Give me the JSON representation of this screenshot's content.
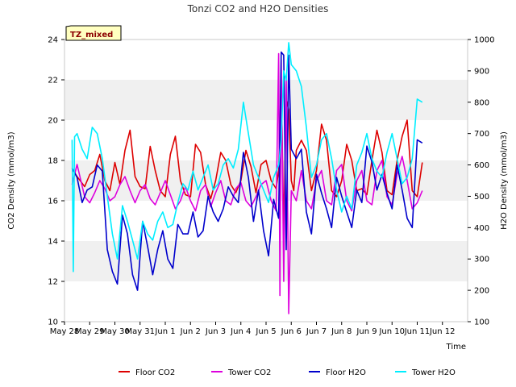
{
  "chart_data": {
    "type": "line",
    "title": "Tonzi CO2 and H2O Densities",
    "badge": "TZ_mixed",
    "xlabel": "Time",
    "ylabel": "CO2 Density (mmol/m3)",
    "y2label": "H2O Density (mmol/m3)",
    "xlim": [
      0,
      16
    ],
    "ylim": [
      10,
      24
    ],
    "y2lim": [
      100,
      1000
    ],
    "x_ticks": [
      {
        "x": 0,
        "label": "May 28"
      },
      {
        "x": 1,
        "label": "May 29"
      },
      {
        "x": 2,
        "label": "May 30"
      },
      {
        "x": 3,
        "label": "May 31"
      },
      {
        "x": 4,
        "label": "Jun 1"
      },
      {
        "x": 5,
        "label": "Jun 2"
      },
      {
        "x": 6,
        "label": "Jun 3"
      },
      {
        "x": 7,
        "label": "Jun 4"
      },
      {
        "x": 8,
        "label": "Jun 5"
      },
      {
        "x": 9,
        "label": "Jun 6"
      },
      {
        "x": 10,
        "label": "Jun 7"
      },
      {
        "x": 11,
        "label": "Jun 8"
      },
      {
        "x": 12,
        "label": "Jun 9"
      },
      {
        "x": 13,
        "label": "Jun 10"
      },
      {
        "x": 14,
        "label": "Jun 11"
      },
      {
        "x": 15,
        "label": "Jun 12"
      }
    ],
    "y_ticks": [
      10,
      12,
      14,
      16,
      18,
      20,
      22,
      24
    ],
    "y2_ticks": [
      100,
      200,
      300,
      400,
      500,
      600,
      700,
      800,
      900,
      1000
    ],
    "grid": "horizontal bands",
    "legend_position": "bottom",
    "series": [
      {
        "name": "Floor CO2",
        "axis": "left",
        "color": "#dd0000",
        "x": [
          0.3,
          0.5,
          0.8,
          1.0,
          1.2,
          1.4,
          1.6,
          1.8,
          2.0,
          2.2,
          2.4,
          2.6,
          2.8,
          3.0,
          3.2,
          3.4,
          3.6,
          3.8,
          4.0,
          4.2,
          4.4,
          4.6,
          4.8,
          5.0,
          5.2,
          5.4,
          5.6,
          5.8,
          6.0,
          6.2,
          6.4,
          6.6,
          6.8,
          7.0,
          7.2,
          7.4,
          7.6,
          7.8,
          8.0,
          8.2,
          8.4,
          8.5,
          8.6,
          8.7,
          8.8,
          8.9,
          9.0,
          9.1,
          9.2,
          9.4,
          9.6,
          9.8,
          10.0,
          10.2,
          10.4,
          10.6,
          10.8,
          11.0,
          11.2,
          11.4,
          11.6,
          11.8,
          12.0,
          12.2,
          12.4,
          12.6,
          12.8,
          13.0,
          13.2,
          13.4,
          13.6,
          13.8,
          14.0,
          14.2
        ],
        "y": [
          17.6,
          17.2,
          16.7,
          17.3,
          17.5,
          18.3,
          17.0,
          16.5,
          17.9,
          16.8,
          18.5,
          19.5,
          17.2,
          16.7,
          16.6,
          18.7,
          17.5,
          16.5,
          16.2,
          18.3,
          19.2,
          17.0,
          16.3,
          16.2,
          18.8,
          18.4,
          16.8,
          16.1,
          17.0,
          18.4,
          18.0,
          16.8,
          16.4,
          17.0,
          18.5,
          17.7,
          16.4,
          17.8,
          18.0,
          17.0,
          16.6,
          17.5,
          22.0,
          14.5,
          21.0,
          20.5,
          17.0,
          16.5,
          18.5,
          19.0,
          18.5,
          16.5,
          17.5,
          19.8,
          19.0,
          16.5,
          16.2,
          17.0,
          18.8,
          18.0,
          16.5,
          16.6,
          16.3,
          18.0,
          19.5,
          18.4,
          16.5,
          16.3,
          18.0,
          19.2,
          20.0,
          16.5,
          16.2,
          17.9
        ]
      },
      {
        "name": "Tower CO2",
        "axis": "left",
        "color": "#dd00dd",
        "x": [
          0.3,
          0.5,
          0.8,
          1.0,
          1.2,
          1.4,
          1.6,
          1.8,
          2.0,
          2.2,
          2.4,
          2.6,
          2.8,
          3.0,
          3.2,
          3.4,
          3.6,
          3.8,
          4.0,
          4.2,
          4.4,
          4.6,
          4.8,
          5.0,
          5.2,
          5.4,
          5.6,
          5.8,
          6.0,
          6.2,
          6.4,
          6.6,
          6.8,
          7.0,
          7.2,
          7.4,
          7.6,
          7.8,
          8.0,
          8.2,
          8.4,
          8.5,
          8.55,
          8.6,
          8.7,
          8.8,
          8.9,
          9.0,
          9.2,
          9.4,
          9.6,
          9.8,
          10.0,
          10.2,
          10.4,
          10.6,
          10.8,
          11.0,
          11.2,
          11.4,
          11.6,
          11.8,
          12.0,
          12.2,
          12.4,
          12.6,
          12.8,
          13.0,
          13.2,
          13.4,
          13.6,
          13.8,
          14.0,
          14.2
        ],
        "y": [
          16.8,
          17.8,
          16.2,
          15.9,
          16.4,
          17.0,
          16.6,
          16.0,
          16.2,
          16.8,
          17.2,
          16.5,
          15.9,
          16.5,
          16.8,
          16.1,
          15.8,
          16.4,
          17.0,
          16.3,
          15.6,
          16.0,
          16.7,
          16.0,
          15.5,
          16.5,
          16.8,
          15.7,
          16.4,
          17.0,
          16.0,
          15.8,
          16.6,
          16.9,
          16.0,
          15.7,
          16.2,
          16.8,
          17.0,
          16.0,
          15.5,
          23.3,
          11.3,
          23.0,
          12.0,
          22.0,
          10.4,
          16.5,
          16.0,
          17.5,
          16.0,
          15.6,
          17.0,
          17.5,
          16.0,
          15.8,
          17.5,
          17.8,
          16.0,
          15.5,
          17.0,
          17.5,
          16.0,
          15.8,
          17.5,
          18.0,
          16.2,
          15.8,
          17.3,
          18.2,
          17.0,
          15.6,
          15.9,
          16.5
        ]
      },
      {
        "name": "Floor H2O",
        "axis": "right",
        "color": "#0000cc",
        "x": [
          0.3,
          0.5,
          0.7,
          0.9,
          1.1,
          1.3,
          1.5,
          1.7,
          1.9,
          2.1,
          2.3,
          2.5,
          2.7,
          2.9,
          3.1,
          3.3,
          3.5,
          3.7,
          3.9,
          4.1,
          4.3,
          4.5,
          4.7,
          4.9,
          5.1,
          5.3,
          5.5,
          5.7,
          5.9,
          6.1,
          6.3,
          6.5,
          6.7,
          6.9,
          7.1,
          7.3,
          7.5,
          7.7,
          7.9,
          8.1,
          8.3,
          8.5,
          8.6,
          8.7,
          8.8,
          8.9,
          9.0,
          9.2,
          9.4,
          9.6,
          9.8,
          10.0,
          10.2,
          10.4,
          10.6,
          10.8,
          11.0,
          11.2,
          11.4,
          11.6,
          11.8,
          12.0,
          12.2,
          12.4,
          12.6,
          12.8,
          13.0,
          13.2,
          13.4,
          13.6,
          13.8,
          14.0,
          14.2
        ],
        "y": [
          590,
          560,
          480,
          520,
          530,
          600,
          580,
          330,
          260,
          220,
          440,
          380,
          250,
          200,
          420,
          340,
          250,
          330,
          390,
          300,
          270,
          410,
          380,
          380,
          450,
          370,
          390,
          500,
          450,
          420,
          460,
          530,
          500,
          480,
          640,
          560,
          420,
          520,
          390,
          310,
          490,
          430,
          960,
          950,
          330,
          950,
          650,
          620,
          650,
          450,
          380,
          570,
          510,
          460,
          400,
          560,
          500,
          450,
          400,
          520,
          480,
          660,
          610,
          520,
          570,
          510,
          460,
          600,
          520,
          430,
          400,
          680,
          670
        ]
      },
      {
        "name": "Tower H2O",
        "axis": "right",
        "color": "#00eeff",
        "x": [
          0.3,
          0.35,
          0.4,
          0.5,
          0.7,
          0.9,
          1.1,
          1.3,
          1.5,
          1.7,
          1.9,
          2.1,
          2.3,
          2.5,
          2.7,
          2.9,
          3.1,
          3.3,
          3.5,
          3.7,
          3.9,
          4.1,
          4.3,
          4.5,
          4.7,
          4.9,
          5.1,
          5.3,
          5.5,
          5.7,
          5.9,
          6.1,
          6.3,
          6.5,
          6.7,
          6.9,
          7.1,
          7.3,
          7.5,
          7.7,
          7.9,
          8.1,
          8.3,
          8.5,
          8.6,
          8.7,
          8.8,
          8.9,
          9.0,
          9.2,
          9.4,
          9.6,
          9.8,
          10.0,
          10.2,
          10.4,
          10.6,
          10.8,
          11.0,
          11.2,
          11.4,
          11.6,
          11.8,
          12.0,
          12.2,
          12.4,
          12.6,
          12.8,
          13.0,
          13.2,
          13.4,
          13.6,
          13.8,
          14.0,
          14.2
        ],
        "y": [
          680,
          260,
          690,
          700,
          650,
          620,
          720,
          700,
          620,
          500,
          380,
          300,
          470,
          420,
          360,
          300,
          420,
          380,
          360,
          420,
          450,
          400,
          410,
          480,
          540,
          520,
          580,
          520,
          560,
          600,
          520,
          540,
          600,
          620,
          590,
          650,
          800,
          700,
          600,
          560,
          520,
          480,
          560,
          600,
          680,
          900,
          870,
          990,
          920,
          900,
          850,
          720,
          560,
          600,
          680,
          700,
          620,
          520,
          450,
          500,
          460,
          600,
          640,
          700,
          620,
          580,
          560,
          640,
          700,
          620,
          540,
          560,
          620,
          810,
          800
        ]
      }
    ]
  }
}
